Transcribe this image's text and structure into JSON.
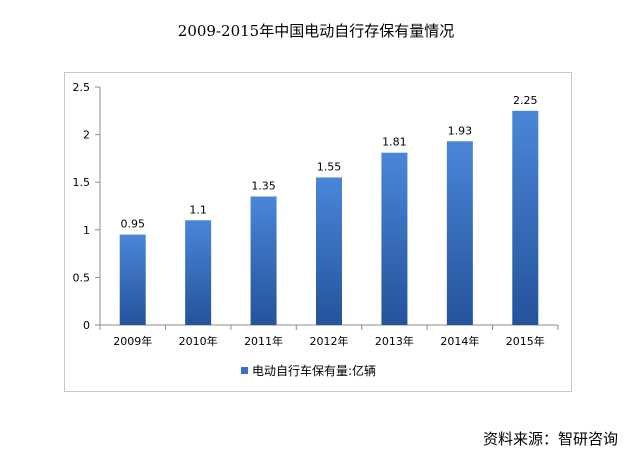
{
  "title": "2009-2015年中国电动自行存保有量情况",
  "source": "资料来源：智研咨询",
  "chart_data": {
    "type": "bar",
    "categories": [
      "2009年",
      "2010年",
      "2011年",
      "2012年",
      "2013年",
      "2014年",
      "2015年"
    ],
    "series": [
      {
        "name": "电动自行车保有量:亿辆",
        "values": [
          0.95,
          1.1,
          1.35,
          1.55,
          1.81,
          1.93,
          2.25
        ]
      }
    ],
    "data_labels": [
      "0.95",
      "1.1",
      "1.35",
      "1.55",
      "1.81",
      "1.93",
      "2.25"
    ],
    "y_ticks": [
      "0",
      "0.5",
      "1",
      "1.5",
      "2",
      "2.5"
    ],
    "ylim": [
      0,
      2.5
    ],
    "grid": false,
    "legend_position": "bottom",
    "colors": {
      "bar_top": "#4a86d8",
      "bar_bottom": "#24539b",
      "axis": "#8c8c8c"
    }
  }
}
